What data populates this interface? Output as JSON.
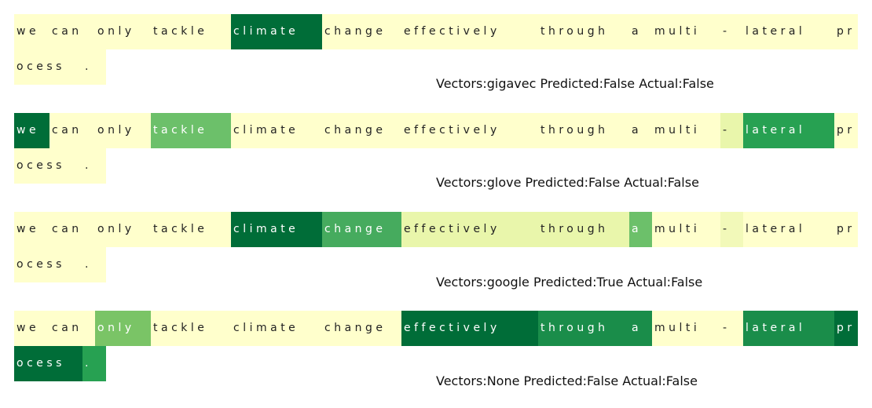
{
  "colors": {
    "level0": "#ffffcc",
    "level1": "#f2f9b9",
    "level2": "#e9f6ab",
    "level3": "#7ac466",
    "level4": "#6cc06a",
    "level5": "#46ab5e",
    "level6": "#27a152",
    "level7": "#1a8d4a",
    "level8": "#137f43",
    "level9": "#006d38"
  },
  "panels": [
    {
      "caption": "Vectors:gigavec Predicted:False Actual:False",
      "row1": [
        {
          "text": "we",
          "level": 0
        },
        {
          "text": "can",
          "level": 0
        },
        {
          "text": "only",
          "level": 0
        },
        {
          "text": "tackle",
          "level": 0
        },
        {
          "text": "climate",
          "level": 9
        },
        {
          "text": "change",
          "level": 0
        },
        {
          "text": "effectively",
          "level": 0
        },
        {
          "text": "through",
          "level": 0
        },
        {
          "text": "a",
          "level": 0
        },
        {
          "text": "multi",
          "level": 0
        },
        {
          "text": "-",
          "level": 0
        },
        {
          "text": "lateral",
          "level": 0
        },
        {
          "text": "pr",
          "level": 0
        }
      ],
      "row2": [
        {
          "text": "ocess",
          "level": 0
        },
        {
          "text": ".",
          "level": 0
        }
      ]
    },
    {
      "caption": "Vectors:glove Predicted:False Actual:False",
      "row1": [
        {
          "text": "we",
          "level": 9
        },
        {
          "text": "can",
          "level": 0
        },
        {
          "text": "only",
          "level": 0
        },
        {
          "text": "tackle",
          "level": 4
        },
        {
          "text": "climate",
          "level": 0
        },
        {
          "text": "change",
          "level": 0
        },
        {
          "text": "effectively",
          "level": 0
        },
        {
          "text": "through",
          "level": 0
        },
        {
          "text": "a",
          "level": 0
        },
        {
          "text": "multi",
          "level": 0
        },
        {
          "text": "-",
          "level": 2
        },
        {
          "text": "lateral",
          "level": 6
        },
        {
          "text": "pr",
          "level": 0
        }
      ],
      "row2": [
        {
          "text": "ocess",
          "level": 0
        },
        {
          "text": ".",
          "level": 0
        }
      ]
    },
    {
      "caption": "Vectors:google Predicted:True Actual:False",
      "row1": [
        {
          "text": "we",
          "level": 0
        },
        {
          "text": "can",
          "level": 0
        },
        {
          "text": "only",
          "level": 0
        },
        {
          "text": "tackle",
          "level": 0
        },
        {
          "text": "climate",
          "level": 9
        },
        {
          "text": "change",
          "level": 5
        },
        {
          "text": "effectively",
          "level": 2
        },
        {
          "text": "through",
          "level": 2
        },
        {
          "text": "a",
          "level": 4
        },
        {
          "text": "multi",
          "level": 0
        },
        {
          "text": "-",
          "level": 1
        },
        {
          "text": "lateral",
          "level": 0
        },
        {
          "text": "pr",
          "level": 0
        }
      ],
      "row2": [
        {
          "text": "ocess",
          "level": 0
        },
        {
          "text": ".",
          "level": 0
        }
      ]
    },
    {
      "caption": "Vectors:None Predicted:False Actual:False",
      "row1": [
        {
          "text": "we",
          "level": 0
        },
        {
          "text": "can",
          "level": 0
        },
        {
          "text": "only",
          "level": 3
        },
        {
          "text": "tackle",
          "level": 0
        },
        {
          "text": "climate",
          "level": 0
        },
        {
          "text": "change",
          "level": 0
        },
        {
          "text": "effectively",
          "level": 9
        },
        {
          "text": "through",
          "level": 7
        },
        {
          "text": "a",
          "level": 7
        },
        {
          "text": "multi",
          "level": 0
        },
        {
          "text": "-",
          "level": 0
        },
        {
          "text": "lateral",
          "level": 7
        },
        {
          "text": "pr",
          "level": 9
        }
      ],
      "row2": [
        {
          "text": "ocess",
          "level": 9
        },
        {
          "text": ".",
          "level": 6
        }
      ]
    }
  ]
}
